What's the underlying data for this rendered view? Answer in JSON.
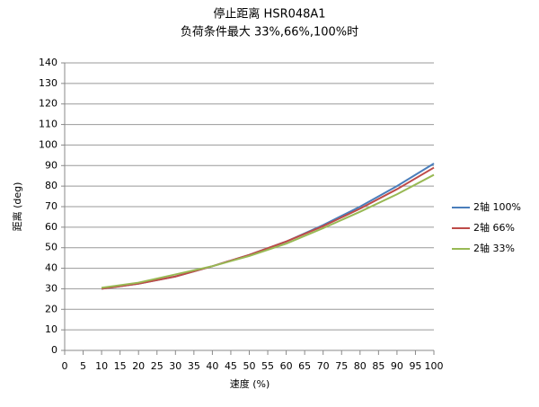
{
  "chart_data": {
    "type": "line",
    "title": "停止距离 HSR048A1",
    "subtitle": "负荷条件最大 33%,66%,100%时",
    "x_label": "速度 (%)",
    "y_label": "距离 (deg)",
    "x": [
      10,
      20,
      30,
      40,
      50,
      60,
      70,
      80,
      90,
      100
    ],
    "series": [
      {
        "name": "2轴 100%",
        "color": "#4a7ebb",
        "values": [
          30,
          32.5,
          36,
          41,
          46.5,
          53,
          61,
          70,
          80,
          91
        ]
      },
      {
        "name": "2轴 66%",
        "color": "#be4b48",
        "values": [
          30,
          32.5,
          36,
          41,
          46.5,
          53,
          60.5,
          69,
          78.5,
          89
        ]
      },
      {
        "name": "2轴 33%",
        "color": "#98b954",
        "values": [
          30.5,
          33,
          37,
          41,
          46,
          52,
          59.5,
          67.5,
          76,
          85.5
        ]
      }
    ],
    "xlim": [
      0,
      100
    ],
    "xticks": [
      0,
      5,
      10,
      15,
      20,
      25,
      30,
      35,
      40,
      45,
      50,
      55,
      60,
      65,
      70,
      75,
      80,
      85,
      90,
      95,
      100
    ],
    "ylim": [
      0,
      140
    ],
    "yticks": [
      0,
      10,
      20,
      30,
      40,
      50,
      60,
      70,
      80,
      90,
      100,
      110,
      120,
      130,
      140
    ],
    "grid": true,
    "legend": "right"
  }
}
